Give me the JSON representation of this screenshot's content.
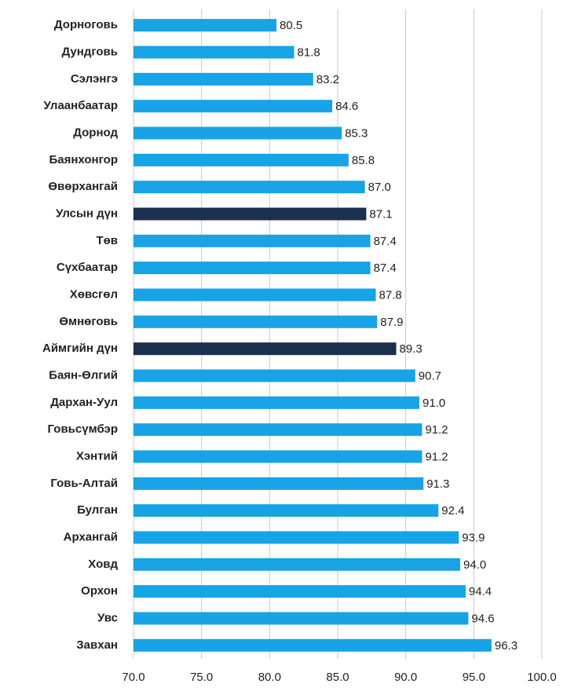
{
  "chart_data": {
    "type": "bar",
    "orientation": "horizontal",
    "categories": [
      "Дорноговь",
      "Дундговь",
      "Сэлэнгэ",
      "Улаанбаатар",
      "Дорнод",
      "Баянхонгор",
      "Өвөрхангай",
      "Улсын дүн",
      "Төв",
      "Сүхбаатар",
      "Хөвсгөл",
      "Өмнөговь",
      "Аймгийн дүн",
      "Баян-Өлгий",
      "Дархан-Уул",
      "Говьсүмбэр",
      "Хэнтий",
      "Говь-Алтай",
      "Булган",
      "Архангай",
      "Ховд",
      "Орхон",
      "Увс",
      "Завхан"
    ],
    "values": [
      80.5,
      81.8,
      83.2,
      84.6,
      85.3,
      85.8,
      87.0,
      87.1,
      87.4,
      87.4,
      87.8,
      87.9,
      89.3,
      90.7,
      91.0,
      91.2,
      91.2,
      91.3,
      92.4,
      93.9,
      94.0,
      94.4,
      94.6,
      96.3
    ],
    "value_labels": [
      "80.5",
      "81.8",
      "83.2",
      "84.6",
      "85.3",
      "85.8",
      "87.0",
      "87.1",
      "87.4",
      "87.4",
      "87.8",
      "87.9",
      "89.3",
      "90.7",
      "91.0",
      "91.2",
      "91.2",
      "91.3",
      "92.4",
      "93.9",
      "94.0",
      "94.4",
      "94.6",
      "96.3"
    ],
    "colors": [
      "#17a3e6",
      "#17a3e6",
      "#17a3e6",
      "#17a3e6",
      "#17a3e6",
      "#17a3e6",
      "#17a3e6",
      "#1b2f4f",
      "#17a3e6",
      "#17a3e6",
      "#17a3e6",
      "#17a3e6",
      "#1b2f4f",
      "#17a3e6",
      "#17a3e6",
      "#17a3e6",
      "#17a3e6",
      "#17a3e6",
      "#17a3e6",
      "#17a3e6",
      "#17a3e6",
      "#17a3e6",
      "#17a3e6",
      "#17a3e6"
    ],
    "xlim": [
      70,
      100
    ],
    "xticks": [
      {
        "value": 70,
        "label": "70.0"
      },
      {
        "value": 75,
        "label": "75.0"
      },
      {
        "value": 80,
        "label": "80.0"
      },
      {
        "value": 85,
        "label": "85.0"
      },
      {
        "value": 90,
        "label": "90.0"
      },
      {
        "value": 95,
        "label": "95.0"
      },
      {
        "value": 100,
        "label": "100.0"
      }
    ],
    "grid": true
  }
}
